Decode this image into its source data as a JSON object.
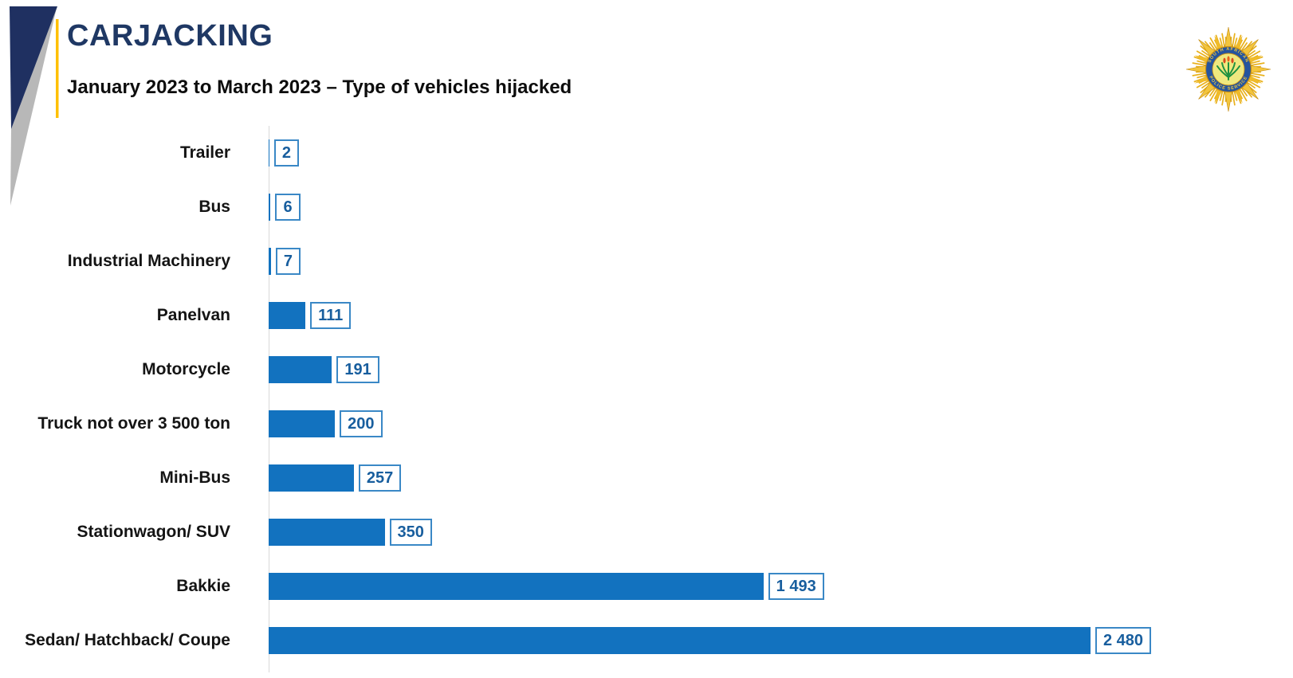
{
  "header": {
    "accent_bar_color": "#FFC000",
    "triangle_navy_color": "#1F3061",
    "triangle_gray_color": "#B8B8B8"
  },
  "logo": {
    "name": "saps-police-badge",
    "ring_text_top": "SOUTH AFRICAN",
    "ring_text_bottom": "POLICE SERVICE",
    "ray_color": "#E9B11C",
    "ring_color": "#24549E",
    "center_color": "#EFE87F",
    "plant_color": "#1F9140"
  },
  "colors": {
    "bar": "#1272BF",
    "value_box_border": "#3A88C6",
    "value_text": "#185E9E",
    "title": "#1F3864",
    "axis": "#D9D9D9"
  },
  "chart_data": {
    "type": "bar",
    "orientation": "horizontal",
    "title": "CARJACKING",
    "subtitle": "January 2023 to March 2023 – Type of vehicles hijacked",
    "categories": [
      "Trailer",
      "Bus",
      "Industrial Machinery",
      "Panelvan",
      "Motorcycle",
      "Truck not over 3 500 ton",
      "Mini-Bus",
      "Stationwagon/ SUV",
      "Bakkie",
      "Sedan/ Hatchback/ Coupe"
    ],
    "values": [
      2,
      6,
      7,
      111,
      191,
      200,
      257,
      350,
      1493,
      2480
    ],
    "value_labels": [
      "2",
      "6",
      "7",
      "111",
      "191",
      "200",
      "257",
      "350",
      "1 493",
      "2 480"
    ],
    "xlim": [
      0,
      2480
    ],
    "grid": false,
    "legend": false,
    "value_labels_style": "boxed",
    "bar_color": "#1272BF"
  }
}
